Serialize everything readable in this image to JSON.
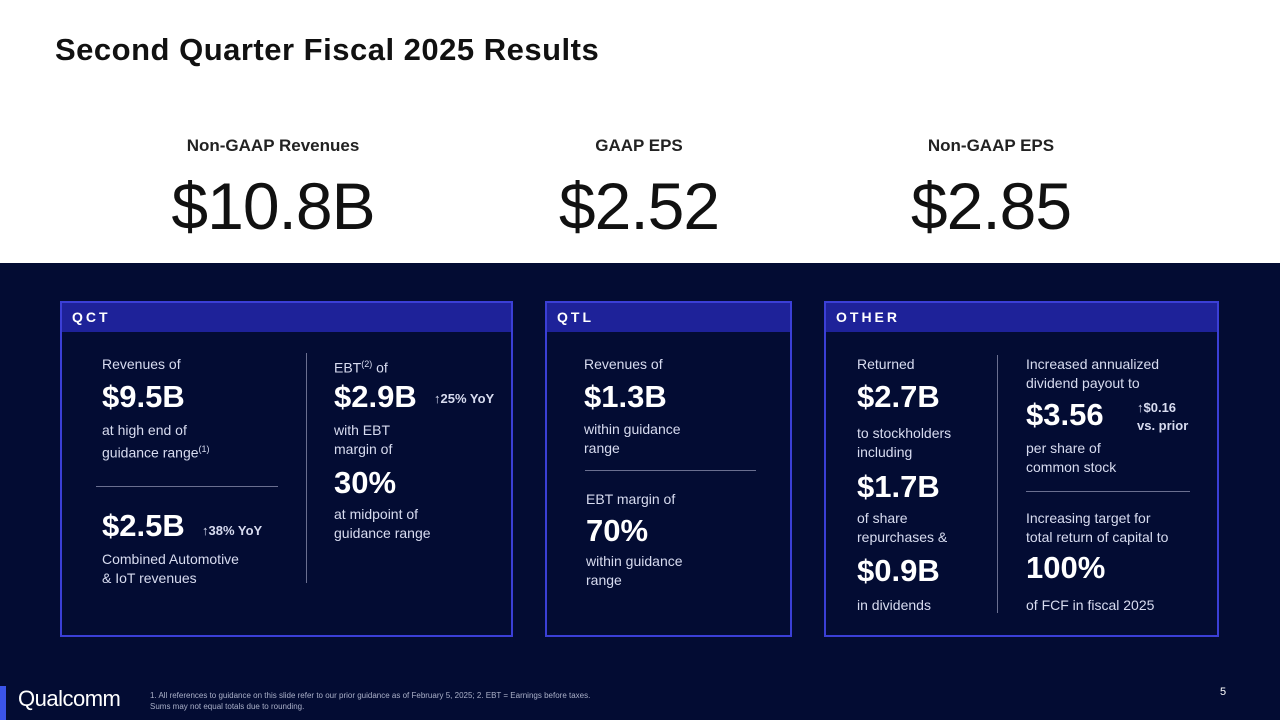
{
  "title": "Second Quarter Fiscal 2025 Results",
  "kpis": [
    {
      "label": "Non-GAAP Revenues",
      "value": "$10.8B"
    },
    {
      "label": "GAAP EPS",
      "value": "$2.52"
    },
    {
      "label": "Non-GAAP EPS",
      "value": "$2.85"
    }
  ],
  "qct": {
    "header": "QCT",
    "rev_label": "Revenues of",
    "rev_value": "$9.5B",
    "rev_note1": "at high end of",
    "rev_note2": "guidance range",
    "rev_note_sup": "(1)",
    "auto_value": "$2.5B",
    "auto_change": "↑38% YoY",
    "auto_note1": "Combined Automotive",
    "auto_note2": "& IoT revenues",
    "ebt_label": "EBT",
    "ebt_sup": "(2)",
    "ebt_label_suffix": " of",
    "ebt_value": "$2.9B",
    "ebt_change": "↑25% YoY",
    "ebt_note1": "with EBT",
    "ebt_note2": "margin of",
    "margin_value": "30%",
    "margin_note1": "at midpoint of",
    "margin_note2": "guidance range"
  },
  "qtl": {
    "header": "QTL",
    "rev_label": "Revenues of",
    "rev_value": "$1.3B",
    "rev_note1": "within guidance",
    "rev_note2": "range",
    "ebt_label": "EBT margin of",
    "ebt_value": "70%",
    "ebt_note1": "within guidance",
    "ebt_note2": "range"
  },
  "other": {
    "header": "OTHER",
    "returned_label": "Returned",
    "returned_value": "$2.7B",
    "returned_note1": "to stockholders",
    "returned_note2": "including",
    "repurchase_value": "$1.7B",
    "repurchase_note1": "of share",
    "repurchase_note2": "repurchases &",
    "dividend_value": "$0.9B",
    "dividend_note": "in dividends",
    "payout_label1": "Increased annualized",
    "payout_label2": "dividend payout to",
    "payout_value": "$3.56",
    "payout_change1": "↑$0.16",
    "payout_change2": "vs. prior",
    "payout_note1": "per share of",
    "payout_note2": "common stock",
    "target_label1": "Increasing target for",
    "target_label2": "total return of capital to",
    "target_value": "100%",
    "target_note": "of FCF in fiscal 2025"
  },
  "footer": {
    "logo": "Qualcomm",
    "note1": "1. All references to guidance on this slide refer to our prior guidance as of February 5, 2025; 2. EBT = Earnings before taxes.",
    "note2": "Sums may not equal totals due to rounding.",
    "page": "5"
  }
}
